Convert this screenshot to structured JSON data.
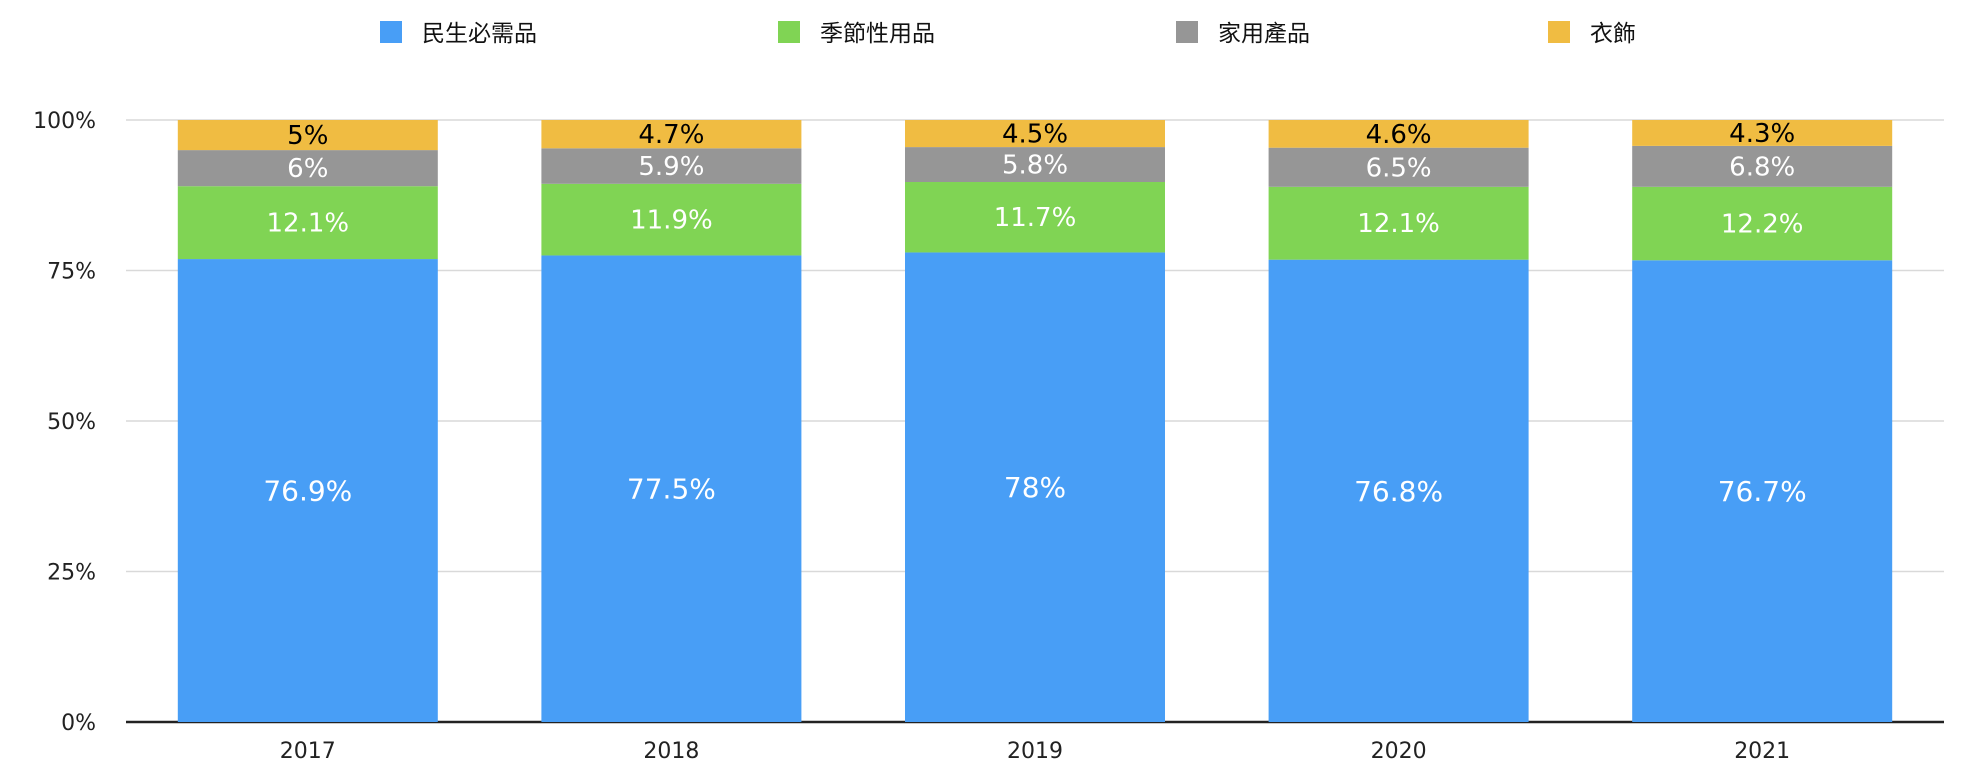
{
  "chart_data": {
    "type": "bar",
    "stacked": true,
    "normalized": true,
    "categories": [
      "2017",
      "2018",
      "2019",
      "2020",
      "2021"
    ],
    "series": [
      {
        "name": "民生必需品",
        "color": "#489ef6",
        "values": [
          76.9,
          77.5,
          78,
          76.8,
          76.7
        ],
        "labels": [
          "76.9%",
          "77.5%",
          "78%",
          "76.8%",
          "76.7%"
        ],
        "label_color": "#ffffff"
      },
      {
        "name": "季節性用品",
        "color": "#80d454",
        "values": [
          12.1,
          11.9,
          11.7,
          12.1,
          12.2
        ],
        "labels": [
          "12.1%",
          "11.9%",
          "11.7%",
          "12.1%",
          "12.2%"
        ],
        "label_color": "#ffffff"
      },
      {
        "name": "家用產品",
        "color": "#969696",
        "values": [
          6,
          5.9,
          5.8,
          6.5,
          6.8
        ],
        "labels": [
          "6%",
          "5.9%",
          "5.8%",
          "6.5%",
          "6.8%"
        ],
        "label_color": "#ffffff"
      },
      {
        "name": "衣飾",
        "color": "#f0bc42",
        "values": [
          5,
          4.7,
          4.5,
          4.6,
          4.3
        ],
        "labels": [
          "5%",
          "4.7%",
          "4.5%",
          "4.6%",
          "4.3%"
        ],
        "label_color": "#000000"
      }
    ],
    "y_ticks": [
      "0%",
      "25%",
      "50%",
      "75%",
      "100%"
    ],
    "ylim": [
      0,
      100
    ],
    "grid": true,
    "legend_position": "top",
    "title": "",
    "xlabel": "",
    "ylabel": ""
  }
}
